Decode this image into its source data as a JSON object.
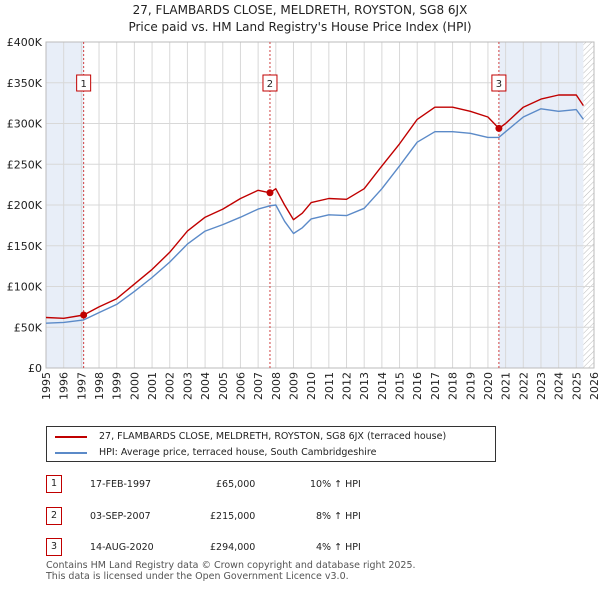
{
  "title": "27, FLAMBARDS CLOSE, MELDRETH, ROYSTON, SG8 6JX",
  "subtitle": "Price paid vs. HM Land Registry's House Price Index (HPI)",
  "colors": {
    "property": "#c00000",
    "hpi": "#5b8ac8",
    "shade": "#e8eef8",
    "grid": "#d8d8d8"
  },
  "legend": {
    "property": "27, FLAMBARDS CLOSE, MELDRETH, ROYSTON, SG8 6JX (terraced house)",
    "hpi": "HPI: Average price, terraced house, South Cambridgeshire"
  },
  "transactions": [
    {
      "num": "1",
      "date": "17-FEB-1997",
      "price": "£65,000",
      "change": "10% ↑ HPI"
    },
    {
      "num": "2",
      "date": "03-SEP-2007",
      "price": "£215,000",
      "change": "8% ↑ HPI"
    },
    {
      "num": "3",
      "date": "14-AUG-2020",
      "price": "£294,000",
      "change": "4% ↑ HPI"
    }
  ],
  "footer": {
    "line1": "Contains HM Land Registry data © Crown copyright and database right 2025.",
    "line2": "This data is licensed under the Open Government Licence v3.0."
  },
  "chart_data": {
    "type": "line",
    "title": "Price paid vs. HM Land Registry's House Price Index (HPI)",
    "xlabel": "",
    "ylabel": "",
    "xlim": [
      1995,
      2026
    ],
    "ylim": [
      0,
      400000
    ],
    "x_ticks": [
      "1995",
      "1996",
      "1997",
      "1998",
      "1999",
      "2000",
      "2001",
      "2002",
      "2003",
      "2004",
      "2005",
      "2006",
      "2007",
      "2008",
      "2009",
      "2010",
      "2011",
      "2012",
      "2013",
      "2014",
      "2015",
      "2016",
      "2017",
      "2018",
      "2019",
      "2020",
      "2021",
      "2022",
      "2023",
      "2024",
      "2025",
      "2026"
    ],
    "y_ticks": [
      {
        "value": 0,
        "label": "£0"
      },
      {
        "value": 50000,
        "label": "£50K"
      },
      {
        "value": 100000,
        "label": "£100K"
      },
      {
        "value": 150000,
        "label": "£150K"
      },
      {
        "value": 200000,
        "label": "£200K"
      },
      {
        "value": 250000,
        "label": "£250K"
      },
      {
        "value": 300000,
        "label": "£300K"
      },
      {
        "value": 350000,
        "label": "£350K"
      },
      {
        "value": 400000,
        "label": "£400K"
      }
    ],
    "grid": true,
    "legend_position": "below",
    "shaded_regions": [
      {
        "from": 1995,
        "to": 1997.13
      },
      {
        "from": 2020.62,
        "to": 2025.4
      }
    ],
    "hatched_region": {
      "from": 2025.4,
      "to": 2026
    },
    "markers": [
      {
        "label": "1",
        "x": 1997.13,
        "y": 65000
      },
      {
        "label": "2",
        "x": 2007.67,
        "y": 215000
      },
      {
        "label": "3",
        "x": 2020.62,
        "y": 294000
      }
    ],
    "series": [
      {
        "name": "27, FLAMBARDS CLOSE, MELDRETH, ROYSTON, SG8 6JX (terraced house)",
        "color": "#c00000",
        "x": [
          1995,
          1996,
          1997.13,
          1998,
          1999,
          2000,
          2001,
          2002,
          2003,
          2004,
          2005,
          2006,
          2007,
          2007.67,
          2008,
          2008.5,
          2009,
          2009.5,
          2010,
          2011,
          2012,
          2013,
          2014,
          2015,
          2016,
          2017,
          2018,
          2019,
          2020,
          2020.62,
          2021,
          2022,
          2023,
          2024,
          2025,
          2025.4
        ],
        "y": [
          62000,
          61000,
          65000,
          75000,
          85000,
          103000,
          121000,
          142000,
          168000,
          185000,
          195000,
          208000,
          218000,
          215000,
          220000,
          200000,
          182000,
          190000,
          203000,
          208000,
          207000,
          220000,
          248000,
          275000,
          305000,
          320000,
          320000,
          315000,
          308000,
          294000,
          300000,
          320000,
          330000,
          335000,
          335000,
          322000
        ]
      },
      {
        "name": "HPI: Average price, terraced house, South Cambridgeshire",
        "color": "#5b8ac8",
        "x": [
          1995,
          1996,
          1997.13,
          1998,
          1999,
          2000,
          2001,
          2002,
          2003,
          2004,
          2005,
          2006,
          2007,
          2007.67,
          2008,
          2008.5,
          2009,
          2009.5,
          2010,
          2011,
          2012,
          2013,
          2014,
          2015,
          2016,
          2017,
          2018,
          2019,
          2020,
          2020.62,
          2021,
          2022,
          2023,
          2024,
          2025,
          2025.4
        ],
        "y": [
          55000,
          56000,
          59000,
          68000,
          78000,
          94000,
          111000,
          130000,
          152000,
          168000,
          176000,
          185000,
          195000,
          199000,
          200000,
          180000,
          165000,
          172000,
          183000,
          188000,
          187000,
          196000,
          220000,
          248000,
          277000,
          290000,
          290000,
          288000,
          283000,
          283000,
          290000,
          308000,
          318000,
          315000,
          317000,
          305000
        ]
      }
    ]
  }
}
